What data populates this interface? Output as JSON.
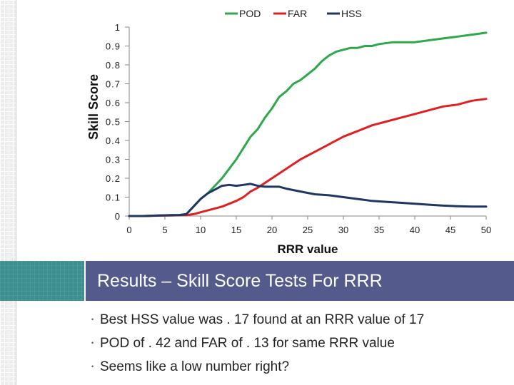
{
  "chart_data": {
    "type": "line",
    "xlabel": "RRR value",
    "ylabel": "Skill Score",
    "xlim": [
      0,
      50
    ],
    "ylim": [
      0,
      1
    ],
    "x_ticks": [
      0,
      5,
      10,
      15,
      20,
      25,
      30,
      35,
      40,
      45,
      50
    ],
    "y_ticks": [
      0,
      0.1,
      0.2,
      0.3,
      0.4,
      0.5,
      0.6,
      0.7,
      0.8,
      0.9,
      1
    ],
    "y_tick_labels": [
      "0",
      "0.1",
      "0.2",
      "0.3",
      "0.4",
      "0.5",
      "0.6",
      "0.7",
      "0.8",
      "0.9",
      "1"
    ],
    "grid": false,
    "legend_position": "top",
    "series": [
      {
        "name": "POD",
        "color": "#2ea84a",
        "points": [
          [
            0,
            0
          ],
          [
            2,
            0
          ],
          [
            4,
            0.003
          ],
          [
            6,
            0.005
          ],
          [
            7,
            0.005
          ],
          [
            8,
            0.01
          ],
          [
            9,
            0.05
          ],
          [
            10,
            0.09
          ],
          [
            11,
            0.12
          ],
          [
            12,
            0.16
          ],
          [
            13,
            0.2
          ],
          [
            14,
            0.25
          ],
          [
            15,
            0.3
          ],
          [
            16,
            0.36
          ],
          [
            17,
            0.42
          ],
          [
            18,
            0.46
          ],
          [
            19,
            0.52
          ],
          [
            20,
            0.57
          ],
          [
            21,
            0.63
          ],
          [
            22,
            0.66
          ],
          [
            23,
            0.7
          ],
          [
            24,
            0.72
          ],
          [
            25,
            0.75
          ],
          [
            26,
            0.78
          ],
          [
            27,
            0.82
          ],
          [
            28,
            0.85
          ],
          [
            29,
            0.87
          ],
          [
            30,
            0.88
          ],
          [
            31,
            0.89
          ],
          [
            32,
            0.89
          ],
          [
            33,
            0.9
          ],
          [
            34,
            0.9
          ],
          [
            35,
            0.91
          ],
          [
            37,
            0.92
          ],
          [
            40,
            0.92
          ],
          [
            42,
            0.93
          ],
          [
            44,
            0.94
          ],
          [
            46,
            0.95
          ],
          [
            48,
            0.96
          ],
          [
            50,
            0.97
          ]
        ]
      },
      {
        "name": "FAR",
        "color": "#e02020",
        "points": [
          [
            0,
            0
          ],
          [
            2,
            0
          ],
          [
            4,
            0.002
          ],
          [
            6,
            0.003
          ],
          [
            7,
            0.004
          ],
          [
            8,
            0.005
          ],
          [
            9,
            0.01
          ],
          [
            10,
            0.02
          ],
          [
            11,
            0.03
          ],
          [
            12,
            0.04
          ],
          [
            13,
            0.05
          ],
          [
            14,
            0.065
          ],
          [
            15,
            0.08
          ],
          [
            16,
            0.1
          ],
          [
            17,
            0.13
          ],
          [
            18,
            0.15
          ],
          [
            19,
            0.175
          ],
          [
            20,
            0.2
          ],
          [
            22,
            0.25
          ],
          [
            24,
            0.3
          ],
          [
            26,
            0.34
          ],
          [
            28,
            0.38
          ],
          [
            30,
            0.42
          ],
          [
            32,
            0.45
          ],
          [
            34,
            0.48
          ],
          [
            36,
            0.5
          ],
          [
            38,
            0.52
          ],
          [
            40,
            0.54
          ],
          [
            42,
            0.56
          ],
          [
            44,
            0.58
          ],
          [
            46,
            0.59
          ],
          [
            48,
            0.61
          ],
          [
            50,
            0.62
          ]
        ]
      },
      {
        "name": "HSS",
        "color": "#1f3564",
        "points": [
          [
            0,
            0
          ],
          [
            2,
            0
          ],
          [
            4,
            0.003
          ],
          [
            6,
            0.005
          ],
          [
            7,
            0.005
          ],
          [
            8,
            0.01
          ],
          [
            9,
            0.05
          ],
          [
            10,
            0.09
          ],
          [
            11,
            0.12
          ],
          [
            12,
            0.14
          ],
          [
            13,
            0.16
          ],
          [
            14,
            0.165
          ],
          [
            15,
            0.16
          ],
          [
            16,
            0.165
          ],
          [
            17,
            0.17
          ],
          [
            18,
            0.16
          ],
          [
            19,
            0.155
          ],
          [
            20,
            0.155
          ],
          [
            21,
            0.155
          ],
          [
            22,
            0.145
          ],
          [
            24,
            0.13
          ],
          [
            26,
            0.115
          ],
          [
            28,
            0.11
          ],
          [
            30,
            0.1
          ],
          [
            32,
            0.09
          ],
          [
            34,
            0.08
          ],
          [
            36,
            0.075
          ],
          [
            38,
            0.07
          ],
          [
            40,
            0.065
          ],
          [
            42,
            0.06
          ],
          [
            44,
            0.055
          ],
          [
            46,
            0.052
          ],
          [
            48,
            0.05
          ],
          [
            50,
            0.05
          ]
        ]
      }
    ]
  },
  "slide": {
    "title": "Results – Skill Score Tests For RRR",
    "bullets": [
      "Best HSS value was . 17 found at an RRR value of 17",
      "POD of . 42 and FAR of . 13 for same RRR value",
      "Seems like a low number right?"
    ],
    "bullet_glyph": "•"
  }
}
